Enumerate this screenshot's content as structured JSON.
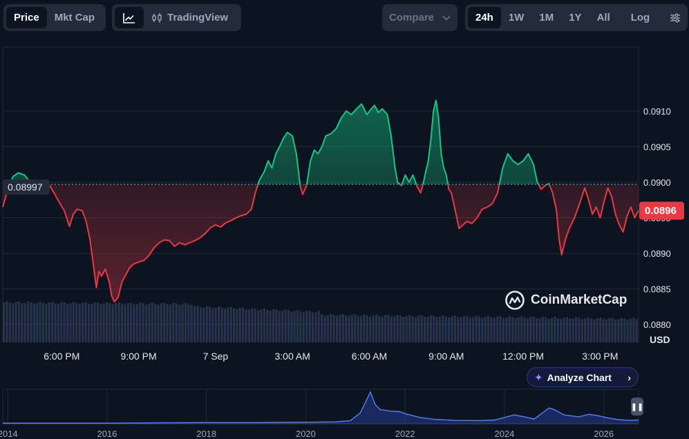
{
  "toolbar": {
    "type_tabs": [
      {
        "label": "Price",
        "active": true
      },
      {
        "label": "Mkt Cap",
        "active": false
      }
    ],
    "tradingview_label": "TradingView",
    "compare_label": "Compare",
    "range_tabs": [
      {
        "label": "24h",
        "active": true
      },
      {
        "label": "1W",
        "active": false
      },
      {
        "label": "1M",
        "active": false
      },
      {
        "label": "1Y",
        "active": false
      },
      {
        "label": "All",
        "active": false
      }
    ],
    "log_label": "Log"
  },
  "chart_data": {
    "type": "line",
    "baseline": 0.08997,
    "baseline_label": "0.08997",
    "current_price_label": "0.0896",
    "currency_label": "USD",
    "ylim": [
      0.08775,
      0.0919
    ],
    "y_ticks": [
      "0.0910",
      "0.0905",
      "0.0900",
      "0.0895",
      "0.0890",
      "0.0885",
      "0.0880"
    ],
    "x_ticks": [
      "6:00 PM",
      "9:00 PM",
      "7 Sep",
      "3:00 AM",
      "6:00 AM",
      "9:00 AM",
      "12:00 PM",
      "3:00 PM"
    ],
    "x_hours_start": 15.7,
    "x_hours_end": 40.5,
    "price_series": [
      [
        15.7,
        0.08965
      ],
      [
        15.9,
        0.0899
      ],
      [
        16.1,
        0.09008
      ],
      [
        16.3,
        0.09013
      ],
      [
        16.55,
        0.0901
      ],
      [
        16.8,
        0.08998
      ],
      [
        17.0,
        0.08993
      ],
      [
        17.2,
        0.09002
      ],
      [
        17.45,
        0.09
      ],
      [
        17.7,
        0.08985
      ],
      [
        17.9,
        0.08972
      ],
      [
        18.1,
        0.0896
      ],
      [
        18.3,
        0.08938
      ],
      [
        18.45,
        0.08955
      ],
      [
        18.6,
        0.08962
      ],
      [
        18.8,
        0.0896
      ],
      [
        18.95,
        0.08945
      ],
      [
        19.1,
        0.0892
      ],
      [
        19.25,
        0.0888
      ],
      [
        19.35,
        0.08852
      ],
      [
        19.45,
        0.08875
      ],
      [
        19.55,
        0.08868
      ],
      [
        19.7,
        0.08878
      ],
      [
        19.85,
        0.0886
      ],
      [
        19.95,
        0.0884
      ],
      [
        20.05,
        0.08832
      ],
      [
        20.2,
        0.08838
      ],
      [
        20.35,
        0.0886
      ],
      [
        20.5,
        0.0887
      ],
      [
        20.65,
        0.0888
      ],
      [
        20.8,
        0.08885
      ],
      [
        21.0,
        0.08888
      ],
      [
        21.2,
        0.0889
      ],
      [
        21.4,
        0.08897
      ],
      [
        21.6,
        0.08908
      ],
      [
        21.8,
        0.08915
      ],
      [
        22.0,
        0.08919
      ],
      [
        22.2,
        0.08918
      ],
      [
        22.4,
        0.0891
      ],
      [
        22.6,
        0.08915
      ],
      [
        22.8,
        0.08912
      ],
      [
        23.0,
        0.08915
      ],
      [
        23.2,
        0.08918
      ],
      [
        23.4,
        0.08922
      ],
      [
        23.6,
        0.08928
      ],
      [
        23.8,
        0.08936
      ],
      [
        24.0,
        0.0894
      ],
      [
        24.2,
        0.08937
      ],
      [
        24.4,
        0.08943
      ],
      [
        24.6,
        0.08946
      ],
      [
        24.8,
        0.0895
      ],
      [
        25.0,
        0.08953
      ],
      [
        25.2,
        0.08955
      ],
      [
        25.4,
        0.08962
      ],
      [
        25.55,
        0.08985
      ],
      [
        25.7,
        0.09002
      ],
      [
        25.9,
        0.09015
      ],
      [
        26.05,
        0.0903
      ],
      [
        26.2,
        0.0902
      ],
      [
        26.35,
        0.0904
      ],
      [
        26.5,
        0.0905
      ],
      [
        26.65,
        0.09062
      ],
      [
        26.8,
        0.0907
      ],
      [
        27.0,
        0.09065
      ],
      [
        27.15,
        0.0904
      ],
      [
        27.3,
        0.08995
      ],
      [
        27.4,
        0.08983
      ],
      [
        27.55,
        0.08995
      ],
      [
        27.7,
        0.0903
      ],
      [
        27.85,
        0.09045
      ],
      [
        28.0,
        0.0904
      ],
      [
        28.15,
        0.0905
      ],
      [
        28.3,
        0.09065
      ],
      [
        28.5,
        0.09068
      ],
      [
        28.7,
        0.09075
      ],
      [
        28.9,
        0.0909
      ],
      [
        29.1,
        0.091
      ],
      [
        29.3,
        0.09095
      ],
      [
        29.5,
        0.09103
      ],
      [
        29.7,
        0.0911
      ],
      [
        29.9,
        0.09095
      ],
      [
        30.05,
        0.09102
      ],
      [
        30.2,
        0.09108
      ],
      [
        30.35,
        0.09098
      ],
      [
        30.5,
        0.09103
      ],
      [
        30.7,
        0.09095
      ],
      [
        30.85,
        0.09065
      ],
      [
        31.0,
        0.0902
      ],
      [
        31.1,
        0.09
      ],
      [
        31.25,
        0.08995
      ],
      [
        31.4,
        0.0901
      ],
      [
        31.55,
        0.09
      ],
      [
        31.7,
        0.0901
      ],
      [
        31.85,
        0.08995
      ],
      [
        32.0,
        0.08985
      ],
      [
        32.1,
        0.08998
      ],
      [
        32.2,
        0.09015
      ],
      [
        32.3,
        0.0903
      ],
      [
        32.4,
        0.0906
      ],
      [
        32.5,
        0.091
      ],
      [
        32.6,
        0.09115
      ],
      [
        32.7,
        0.0909
      ],
      [
        32.8,
        0.0904
      ],
      [
        32.9,
        0.0902
      ],
      [
        33.0,
        0.0901
      ],
      [
        33.1,
        0.0899
      ],
      [
        33.2,
        0.08985
      ],
      [
        33.35,
        0.0896
      ],
      [
        33.5,
        0.08935
      ],
      [
        33.65,
        0.0894
      ],
      [
        33.8,
        0.08945
      ],
      [
        34.0,
        0.08942
      ],
      [
        34.2,
        0.0895
      ],
      [
        34.4,
        0.08962
      ],
      [
        34.6,
        0.08965
      ],
      [
        34.8,
        0.0897
      ],
      [
        35.0,
        0.08985
      ],
      [
        35.2,
        0.0902
      ],
      [
        35.4,
        0.0904
      ],
      [
        35.6,
        0.0903
      ],
      [
        35.8,
        0.09025
      ],
      [
        36.0,
        0.0903
      ],
      [
        36.2,
        0.0904
      ],
      [
        36.4,
        0.09025
      ],
      [
        36.55,
        0.09
      ],
      [
        36.7,
        0.0899
      ],
      [
        36.85,
        0.08995
      ],
      [
        37.0,
        0.08998
      ],
      [
        37.15,
        0.08985
      ],
      [
        37.3,
        0.0896
      ],
      [
        37.4,
        0.0892
      ],
      [
        37.5,
        0.08898
      ],
      [
        37.65,
        0.0892
      ],
      [
        37.8,
        0.08935
      ],
      [
        38.0,
        0.0895
      ],
      [
        38.2,
        0.0897
      ],
      [
        38.4,
        0.08992
      ],
      [
        38.55,
        0.08975
      ],
      [
        38.7,
        0.08955
      ],
      [
        38.85,
        0.08965
      ],
      [
        39.0,
        0.0895
      ],
      [
        39.15,
        0.08972
      ],
      [
        39.3,
        0.08992
      ],
      [
        39.45,
        0.0898
      ],
      [
        39.6,
        0.08955
      ],
      [
        39.75,
        0.0894
      ],
      [
        39.9,
        0.0893
      ],
      [
        40.05,
        0.08952
      ],
      [
        40.2,
        0.08965
      ],
      [
        40.35,
        0.0895
      ],
      [
        40.5,
        0.0896
      ]
    ],
    "up_color": "#16c784",
    "down_color": "#ea3943",
    "history": {
      "x_ticks": [
        "2014",
        "2016",
        "2018",
        "2020",
        "2022",
        "2024",
        "2026"
      ],
      "x_start": 2013.9,
      "x_end": 2026.7,
      "series": [
        [
          2013.9,
          0.02
        ],
        [
          2015.0,
          0.02
        ],
        [
          2016.0,
          0.02
        ],
        [
          2017.0,
          0.03
        ],
        [
          2018.0,
          0.04
        ],
        [
          2019.0,
          0.04
        ],
        [
          2020.0,
          0.05
        ],
        [
          2020.6,
          0.06
        ],
        [
          2020.9,
          0.1
        ],
        [
          2021.1,
          0.35
        ],
        [
          2021.3,
          1.0
        ],
        [
          2021.4,
          0.6
        ],
        [
          2021.5,
          0.45
        ],
        [
          2021.7,
          0.4
        ],
        [
          2021.9,
          0.38
        ],
        [
          2022.0,
          0.32
        ],
        [
          2022.3,
          0.2
        ],
        [
          2022.6,
          0.14
        ],
        [
          2023.0,
          0.11
        ],
        [
          2023.5,
          0.1
        ],
        [
          2023.8,
          0.12
        ],
        [
          2024.0,
          0.2
        ],
        [
          2024.2,
          0.28
        ],
        [
          2024.4,
          0.22
        ],
        [
          2024.6,
          0.15
        ],
        [
          2024.9,
          0.5
        ],
        [
          2025.0,
          0.45
        ],
        [
          2025.2,
          0.28
        ],
        [
          2025.5,
          0.22
        ],
        [
          2025.7,
          0.3
        ],
        [
          2025.9,
          0.25
        ],
        [
          2026.1,
          0.18
        ],
        [
          2026.3,
          0.13
        ],
        [
          2026.5,
          0.11
        ],
        [
          2026.7,
          0.12
        ]
      ]
    }
  },
  "watermark": "CoinMarketCap",
  "analyze_label": "Analyze Chart",
  "icons": {
    "line_chart": "line-chart-icon",
    "candle": "candlestick-icon",
    "compare_chevron": "chevron-down-icon",
    "settings": "sliders-icon",
    "analyze": "sparkle-icon",
    "pause": "pause-icon"
  }
}
